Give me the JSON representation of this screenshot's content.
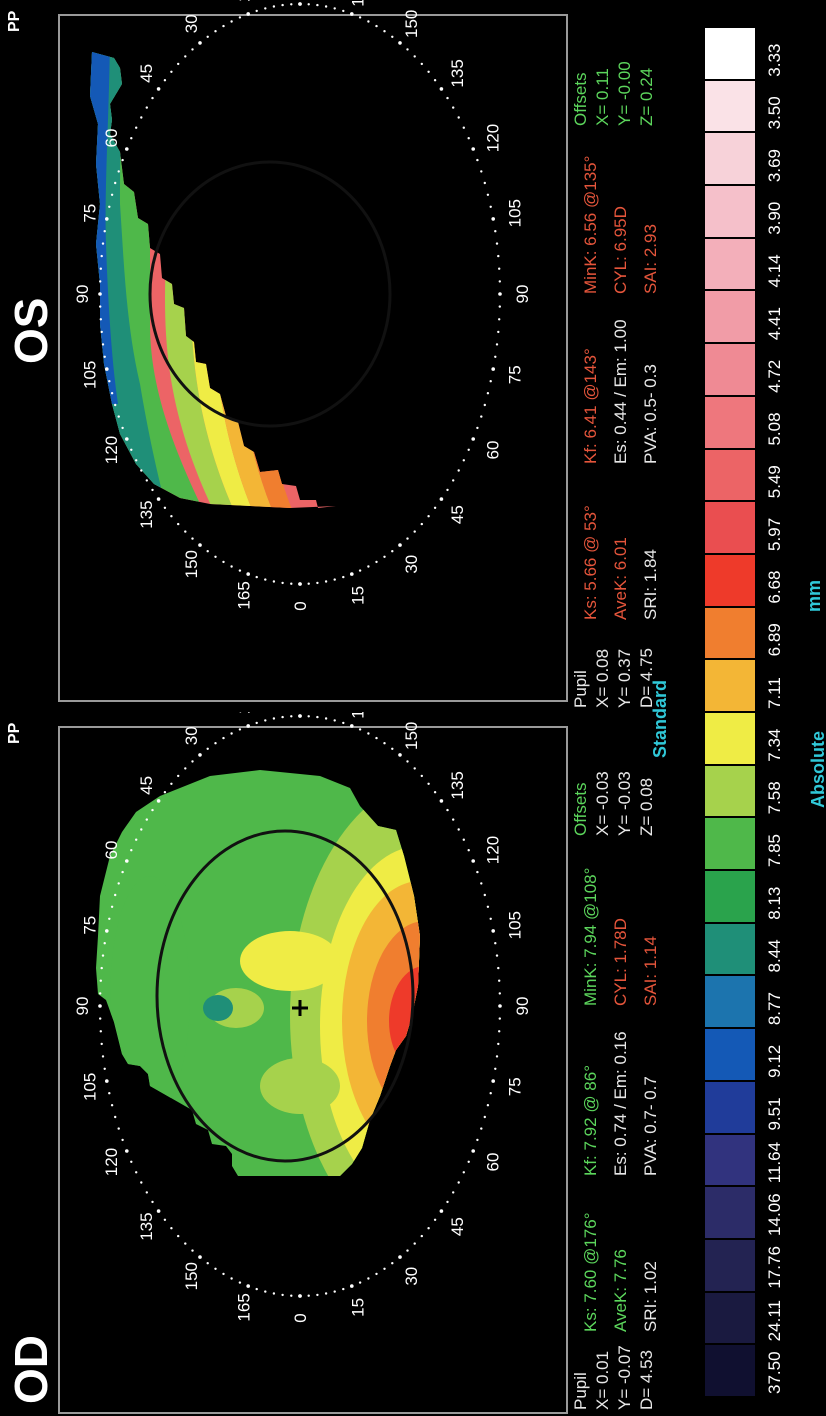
{
  "eyes": [
    {
      "label": "OD",
      "pp": "PP",
      "pupil": {
        "title": "Pupil",
        "x": "X= 0.01",
        "y": "Y= -0.07",
        "d": "D= 4.53"
      },
      "metrics": {
        "ks": "Ks: 7.60 @176°",
        "kf": "Kf: 7.92 @ 86°",
        "mink": "MinK: 7.94 @108°",
        "avek": "AveK: 7.76",
        "es": "Es: 0.74 / Em: 0.16",
        "cyl": "CYL: 1.78D",
        "sri": "SRI: 1.02",
        "pva": "PVA:  0.7-  0.7",
        "sai": "SAI: 1.14"
      },
      "offsets": {
        "title": "Offsets",
        "x": "X= -0.03",
        "y": "Y= -0.03",
        "z": "Z=  0.08"
      }
    },
    {
      "label": "OS",
      "pp": "PP",
      "pupil": {
        "title": "Pupil",
        "x": "X=  0.08",
        "y": "Y=  0.37",
        "d": "D=  4.75"
      },
      "metrics": {
        "ks": "Ks: 5.66 @ 53°",
        "kf": "Kf: 6.41 @143°",
        "mink": "MinK: 6.56 @135°",
        "avek": "AveK: 6.01",
        "es": "Es: 0.44 / Em: 1.00",
        "cyl": "CYL: 6.95D",
        "sri": "SRI: 1.84",
        "pva": "PVA:  0.5-  0.3",
        "sai": "SAI: 2.93"
      },
      "offsets": {
        "title": "Offsets",
        "x": "X=  0.11",
        "y": "Y= -0.00",
        "z": "Z=  0.24"
      }
    }
  ],
  "angle_labels_upper": [
    "0",
    "165",
    "150",
    "135",
    "120",
    "105",
    "90",
    "75",
    "60",
    "45",
    "30",
    "15",
    "0"
  ],
  "angle_labels_lower": [
    "0",
    "15",
    "30",
    "45",
    "60",
    "75",
    "90",
    "105",
    "120",
    "135",
    "150",
    "165",
    "0"
  ],
  "scale_title": "Standard",
  "scale_mode": "Absolute",
  "scale_unit": "mm",
  "scale": {
    "values": [
      "37.50",
      "24.11",
      "17.76",
      "14.06",
      "11.64",
      "9.51",
      "9.12",
      "8.77",
      "8.44",
      "8.13",
      "7.85",
      "7.58",
      "7.34",
      "7.11",
      "6.89",
      "6.68",
      "5.97",
      "5.49",
      "5.08",
      "4.72",
      "4.41",
      "4.14",
      "3.90",
      "3.69",
      "3.50",
      "3.33"
    ],
    "colors": [
      "#101030",
      "#1a1a40",
      "#232352",
      "#2c2c68",
      "#31337e",
      "#203c9a",
      "#1459b6",
      "#1c74ae",
      "#1f8f78",
      "#2aa34c",
      "#4fb84a",
      "#a6d24c",
      "#efec45",
      "#f3b636",
      "#f07e2f",
      "#ee3a2a",
      "#ea4e50",
      "#ec6466",
      "#ee777d",
      "#ef8a94",
      "#f19ca7",
      "#f3afba",
      "#f5c0ca",
      "#f7d2d9",
      "#fae2e7",
      "#ffffff"
    ]
  }
}
